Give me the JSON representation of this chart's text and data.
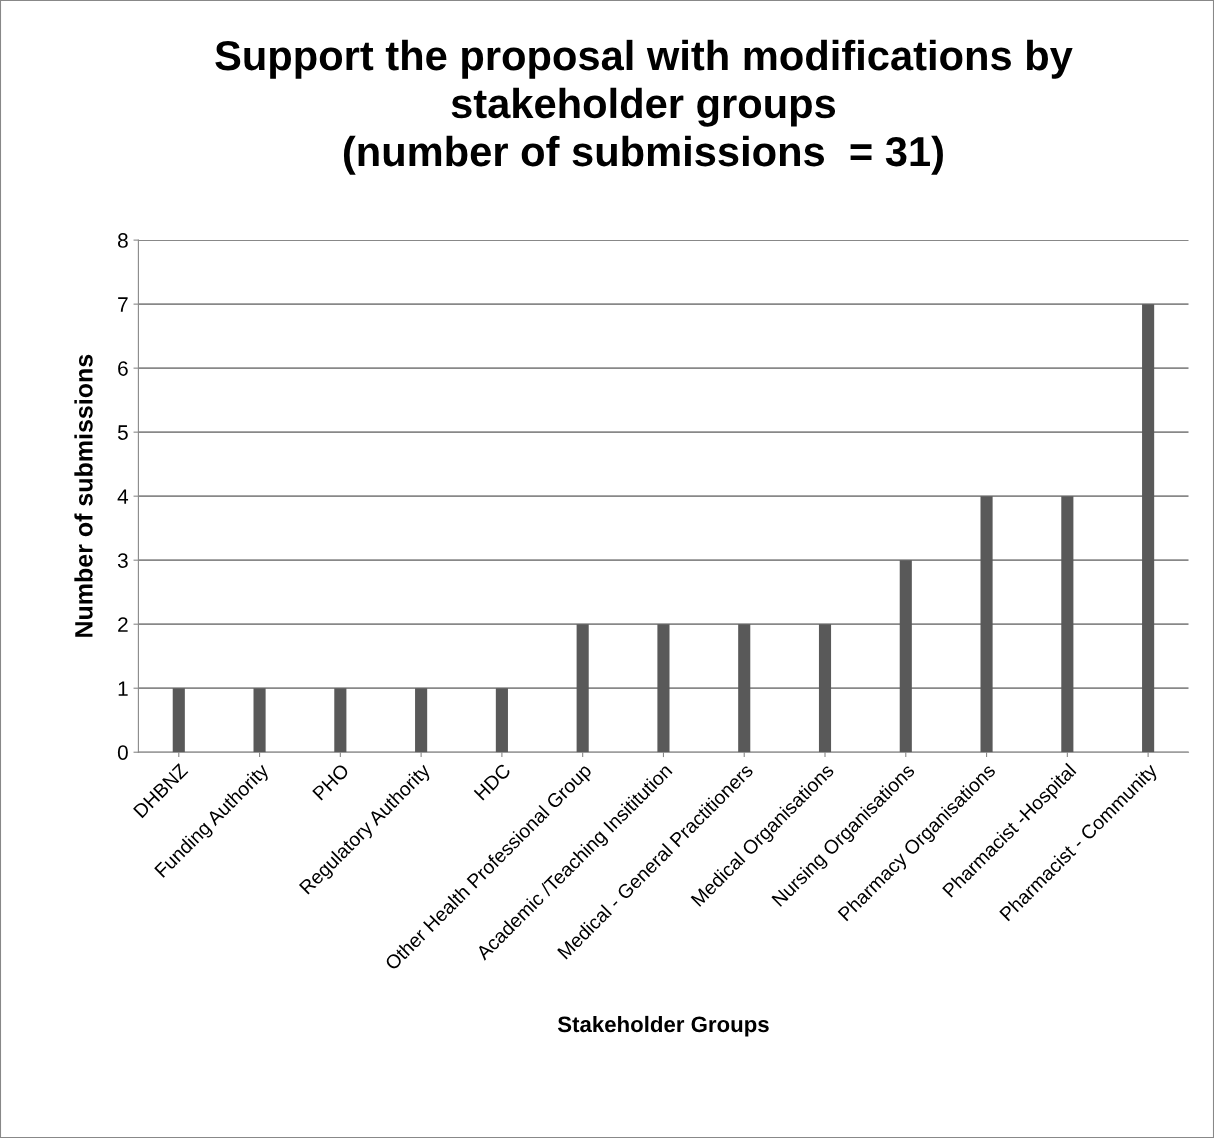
{
  "chart_data": {
    "type": "bar",
    "title": "Support the proposal with modifications by\nstakeholder groups\n(number of submissions  = 31)",
    "xlabel": "Stakeholder Groups",
    "ylabel": "Number of submissions",
    "categories": [
      "DHBNZ",
      "Funding Authority",
      "PHO",
      "Regulatory Authority",
      "HDC",
      "Other Health Professional Group",
      "Academic /Teaching Insititution",
      "Medical - General Practitioners",
      "Medical Organisations",
      "Nursing Organisations",
      "Pharmacy Organisations",
      "Pharmacist -Hospital",
      "Pharmacist - Community"
    ],
    "values": [
      1,
      1,
      1,
      1,
      1,
      2,
      2,
      2,
      2,
      3,
      4,
      4,
      7
    ],
    "color": "#595959",
    "ylim": [
      0,
      8
    ],
    "yticks": [
      0,
      1,
      2,
      3,
      4,
      5,
      6,
      7,
      8
    ],
    "grid": "y",
    "legend": false
  }
}
